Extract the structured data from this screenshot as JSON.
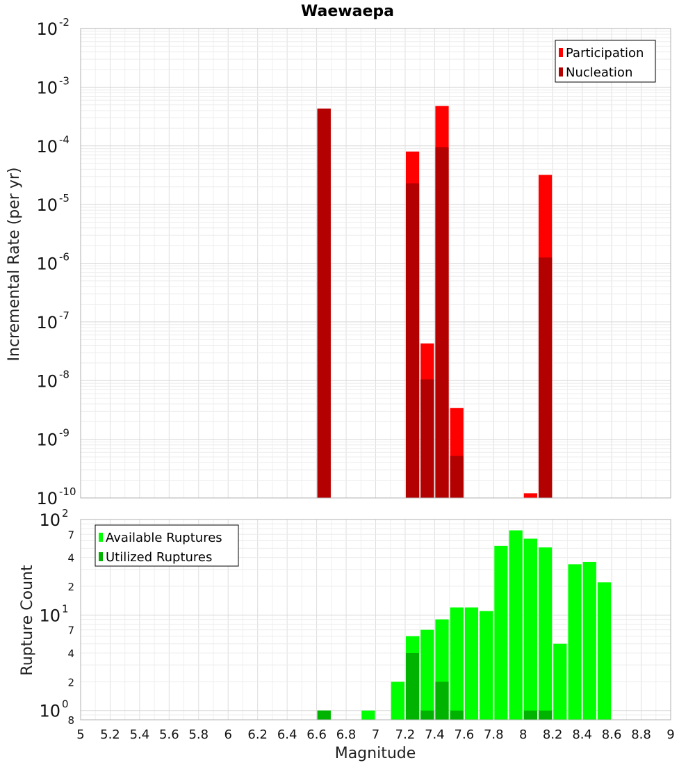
{
  "chart_data": [
    {
      "type": "bar",
      "title": "Waewaepa",
      "xlabel": "",
      "ylabel": "Incremental Rate (per yr)",
      "yscale": "log",
      "ylim": [
        1e-10,
        0.01
      ],
      "xlim": [
        5,
        9
      ],
      "bar_width": 0.1,
      "legend_position": "top-right",
      "grid": true,
      "series": [
        {
          "name": "Participation",
          "color": "#ff0000",
          "x": [
            6.65,
            7.25,
            7.35,
            7.45,
            7.55,
            8.05,
            8.15
          ],
          "values": [
            0.00043,
            8e-05,
            4.3e-08,
            0.00048,
            3.4e-09,
            1.2e-10,
            3.2e-05
          ]
        },
        {
          "name": "Nucleation",
          "color": "#b30000",
          "x": [
            6.65,
            7.25,
            7.35,
            7.45,
            7.55,
            8.15
          ],
          "values": [
            0.00043,
            2.3e-05,
            1.05e-08,
            9.5e-05,
            5.2e-10,
            1.25e-06
          ]
        }
      ],
      "y_ticks": [
        {
          "base": "10",
          "exp": "-10"
        },
        {
          "base": "10",
          "exp": "-9"
        },
        {
          "base": "10",
          "exp": "-8"
        },
        {
          "base": "10",
          "exp": "-7"
        },
        {
          "base": "10",
          "exp": "-6"
        },
        {
          "base": "10",
          "exp": "-5"
        },
        {
          "base": "10",
          "exp": "-4"
        },
        {
          "base": "10",
          "exp": "-3"
        },
        {
          "base": "10",
          "exp": "-2"
        }
      ]
    },
    {
      "type": "bar",
      "title": "",
      "xlabel": "Magnitude",
      "ylabel": "Rupture Count",
      "yscale": "log",
      "ylim": [
        0.8,
        100
      ],
      "xlim": [
        5,
        9
      ],
      "bar_width": 0.1,
      "legend_position": "top-left",
      "grid": true,
      "series": [
        {
          "name": "Available Ruptures",
          "color": "#00ff00",
          "x": [
            6.65,
            6.95,
            7.15,
            7.25,
            7.35,
            7.45,
            7.55,
            7.65,
            7.75,
            7.85,
            7.95,
            8.05,
            8.15,
            8.25,
            8.35,
            8.45,
            8.55
          ],
          "values": [
            1,
            1,
            2,
            6,
            7,
            9,
            12,
            12,
            11,
            53,
            77,
            63,
            51,
            5,
            34,
            36,
            22
          ]
        },
        {
          "name": "Utilized Ruptures",
          "color": "#00b300",
          "x": [
            6.65,
            7.25,
            7.35,
            7.45,
            7.55,
            8.05,
            8.15
          ],
          "values": [
            1,
            4,
            1,
            2,
            1,
            1,
            1
          ]
        }
      ],
      "y_ticks": [
        {
          "base": "10",
          "exp": "0"
        },
        {
          "base": "10",
          "exp": "1"
        },
        {
          "base": "10",
          "exp": "2"
        }
      ],
      "y_minor_ticks": [
        {
          "value": 0.8,
          "label": "8"
        },
        {
          "value": 2,
          "label": "2"
        },
        {
          "value": 4,
          "label": "4"
        },
        {
          "value": 7,
          "label": "7"
        },
        {
          "value": 20,
          "label": "2"
        },
        {
          "value": 40,
          "label": "4"
        },
        {
          "value": 70,
          "label": "7"
        }
      ],
      "x_ticks": [
        "5",
        "5.2",
        "5.4",
        "5.6",
        "5.8",
        "6",
        "6.2",
        "6.4",
        "6.6",
        "6.8",
        "7",
        "7.2",
        "7.4",
        "7.6",
        "7.8",
        "8",
        "8.2",
        "8.4",
        "8.6",
        "8.8",
        "9"
      ]
    }
  ]
}
